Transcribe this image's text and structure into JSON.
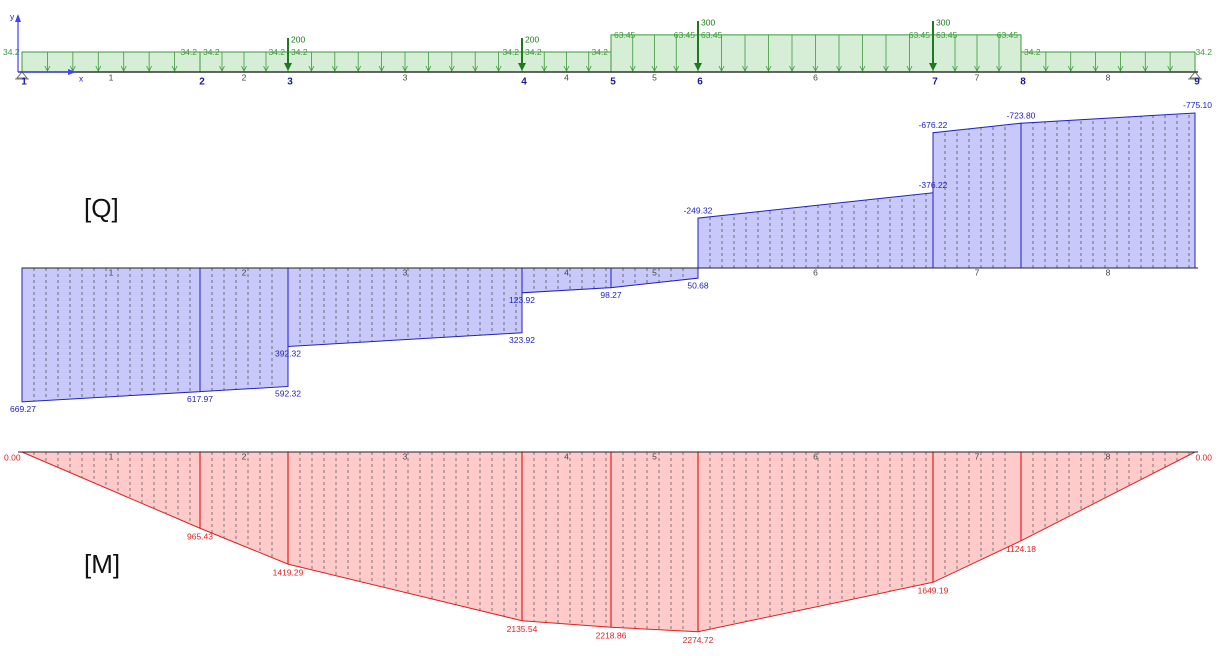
{
  "load": {
    "axis_x": "x",
    "axis_y": "y",
    "nodes": [
      "1",
      "2",
      "3",
      "4",
      "5",
      "6",
      "7",
      "8",
      "9"
    ],
    "elements": [
      "1",
      "2",
      "3",
      "4",
      "5",
      "6",
      "7",
      "8"
    ],
    "distributed": [
      [
        "34.2",
        "34.2"
      ],
      [
        "34.2",
        "34.2"
      ],
      [
        "34.2",
        "34.2"
      ],
      [
        "34.2",
        "34.2"
      ],
      [
        "63.45",
        "63.45"
      ],
      [
        "63.45",
        "63.45"
      ],
      [
        "63.45",
        "63.45"
      ],
      [
        "34.2",
        "34.2"
      ]
    ],
    "point_loads": [
      "200",
      "200",
      "300",
      "300"
    ]
  },
  "shear": {
    "label": "[Q]",
    "elements": [
      "1",
      "2",
      "3",
      "4",
      "5",
      "6",
      "7",
      "8"
    ],
    "values": [
      "669.27",
      "617.97",
      "592.32",
      "392.32",
      "323.92",
      "123.92",
      "98.27",
      "50.68",
      "-249.32",
      "-376.22",
      "-676.22",
      "-723.80",
      "-775.10"
    ]
  },
  "moment": {
    "label": "[M]",
    "elements": [
      "1",
      "2",
      "3",
      "4",
      "5",
      "6",
      "7",
      "8"
    ],
    "values": [
      "0.00",
      "965.43",
      "1419.29",
      "2135.54",
      "2218.86",
      "2274.72",
      "1649.19",
      "1124.18",
      "0.00"
    ]
  }
}
